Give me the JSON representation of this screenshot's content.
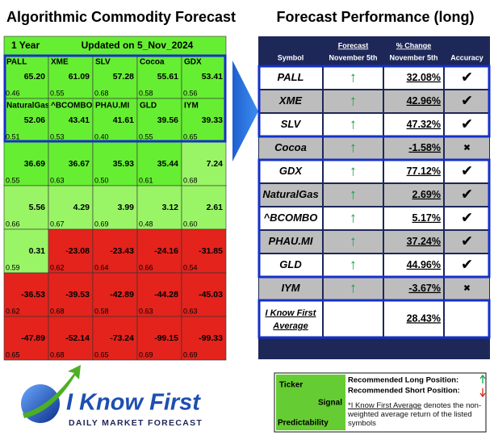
{
  "left": {
    "title": "Algorithmic Commodity Forecast",
    "period": "1 Year",
    "updated": "Updated on 5_Nov_2024",
    "cells": [
      {
        "ticker": "PALL",
        "value": "65.20",
        "predictability": "0.46"
      },
      {
        "ticker": "XME",
        "value": "61.09",
        "predictability": "0.55"
      },
      {
        "ticker": "SLV",
        "value": "57.28",
        "predictability": "0.68"
      },
      {
        "ticker": "Cocoa",
        "value": "55.61",
        "predictability": "0.58"
      },
      {
        "ticker": "GDX",
        "value": "53.41",
        "predictability": "0.56"
      },
      {
        "ticker": "NaturalGas",
        "value": "52.06",
        "predictability": "0.51"
      },
      {
        "ticker": "^BCOMBO",
        "value": "43.41",
        "predictability": "0.53"
      },
      {
        "ticker": "PHAU.MI",
        "value": "41.61",
        "predictability": "0.40"
      },
      {
        "ticker": "GLD",
        "value": "39.56",
        "predictability": "0.55"
      },
      {
        "ticker": "IYM",
        "value": "39.33",
        "predictability": "0.65"
      },
      {
        "value": "36.69",
        "predictability": "0.55"
      },
      {
        "value": "36.67",
        "predictability": "0.63"
      },
      {
        "value": "35.93",
        "predictability": "0.50"
      },
      {
        "value": "35.44",
        "predictability": "0.61"
      },
      {
        "value": "7.24",
        "predictability": "0.68"
      },
      {
        "value": "5.56",
        "predictability": "0.66"
      },
      {
        "value": "4.29",
        "predictability": "0.67"
      },
      {
        "value": "3.99",
        "predictability": "0.69"
      },
      {
        "value": "3.12",
        "predictability": "0.48"
      },
      {
        "value": "2.61",
        "predictability": "0.60"
      },
      {
        "value": "0.31",
        "predictability": "0.59"
      },
      {
        "value": "-23.08",
        "predictability": "0.62"
      },
      {
        "value": "-23.43",
        "predictability": "0.64"
      },
      {
        "value": "-24.16",
        "predictability": "0.66"
      },
      {
        "value": "-31.85",
        "predictability": "0.54"
      },
      {
        "value": "-36.53",
        "predictability": "0.62"
      },
      {
        "value": "-39.53",
        "predictability": "0.68"
      },
      {
        "value": "-42.89",
        "predictability": "0.58"
      },
      {
        "value": "-44.28",
        "predictability": "0.63"
      },
      {
        "value": "-45.03",
        "predictability": "0.63"
      },
      {
        "value": "-47.89",
        "predictability": "0.65"
      },
      {
        "value": "-52.14",
        "predictability": "0.68"
      },
      {
        "value": "-73.24",
        "predictability": "0.65"
      },
      {
        "value": "-99.15",
        "predictability": "0.69"
      },
      {
        "value": "-99.33",
        "predictability": "0.69"
      }
    ]
  },
  "right": {
    "title": "Forecast Performance (long)",
    "headers": {
      "symbol": "Symbol",
      "forecast": "Forecast",
      "forecast_date": "November 5th",
      "change": "% Change",
      "change_date": "November 5th",
      "accuracy": "Accuracy"
    },
    "rows": [
      {
        "symbol": "PALL",
        "forecast": "↑",
        "change": "32.08%",
        "accuracy": "✔"
      },
      {
        "symbol": "XME",
        "forecast": "↑",
        "change": "42.96%",
        "accuracy": "✔"
      },
      {
        "symbol": "SLV",
        "forecast": "↑",
        "change": "47.32%",
        "accuracy": "✔"
      },
      {
        "symbol": "Cocoa",
        "forecast": "↑",
        "change": "-1.58%",
        "accuracy": "✖"
      },
      {
        "symbol": "GDX",
        "forecast": "↑",
        "change": "77.12%",
        "accuracy": "✔"
      },
      {
        "symbol": "NaturalGas",
        "forecast": "↑",
        "change": "2.69%",
        "accuracy": "✔"
      },
      {
        "symbol": "^BCOMBO",
        "forecast": "↑",
        "change": "5.17%",
        "accuracy": "✔"
      },
      {
        "symbol": "PHAU.MI",
        "forecast": "↑",
        "change": "37.24%",
        "accuracy": "✔"
      },
      {
        "symbol": "GLD",
        "forecast": "↑",
        "change": "44.96%",
        "accuracy": "✔"
      },
      {
        "symbol": "IYM",
        "forecast": "↑",
        "change": "-3.67%",
        "accuracy": "✖"
      }
    ],
    "average": {
      "label_line1": "I Know First",
      "label_line2": "Average",
      "change": "28.43%"
    }
  },
  "logo": {
    "name": "I Know First",
    "tagline": "DAILY MARKET FORECAST"
  },
  "legend": {
    "ticker": "Ticker",
    "signal": "Signal",
    "predictability": "Predictability",
    "long": "Recommended Long Position:",
    "short": "Recommended Short Position:",
    "note_link": "*I Know First Average",
    "note": " denotes the non-weighted average return of the listed symbols"
  }
}
